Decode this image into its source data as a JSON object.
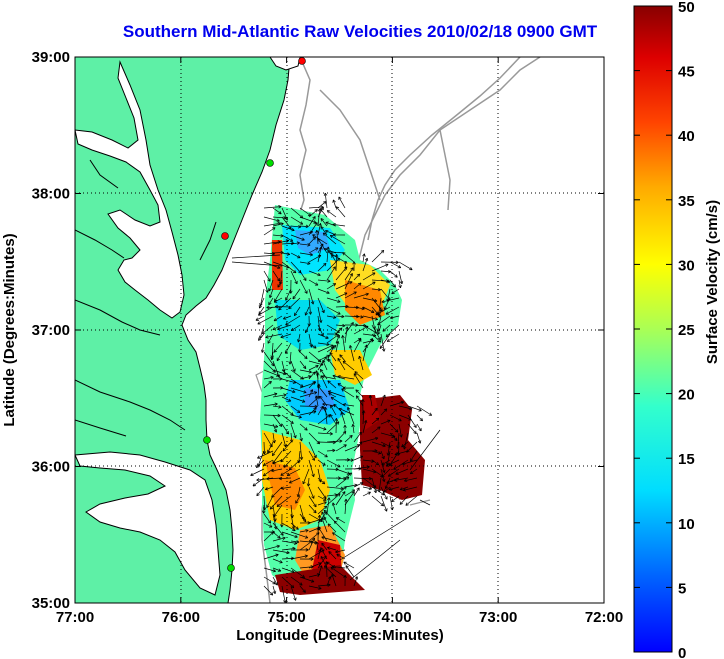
{
  "title": "Southern Mid-Atlantic Raw Velocities 2010/02/18 0900 GMT",
  "x_axis": {
    "label": "Longitude (Degrees:Minutes)",
    "ticks": [
      "77:00",
      "76:00",
      "75:00",
      "74:00",
      "73:00",
      "72:00"
    ]
  },
  "y_axis": {
    "label": "Latitude (Degrees:Minutes)",
    "ticks": [
      "39:00",
      "38:00",
      "37:00",
      "36:00",
      "35:00"
    ]
  },
  "colorbar": {
    "label": "Surface Velocity (cm/s)",
    "ticks": [
      "50",
      "45",
      "40",
      "35",
      "30",
      "25",
      "20",
      "15",
      "10",
      "5",
      "0"
    ],
    "min": 0,
    "max": 50,
    "colormap": "jet"
  },
  "map": {
    "lon_range": [
      -77,
      -72
    ],
    "lat_range": [
      35,
      39
    ],
    "grid": "dotted",
    "land_color": "#5ef0a6",
    "bathymetry_color": "#999999",
    "station_markers": [
      {
        "color": "red",
        "lon": -74.92,
        "lat": 38.98
      },
      {
        "color": "green",
        "lon": -75.09,
        "lat": 38.22
      },
      {
        "color": "red",
        "lon": -75.48,
        "lat": 37.7
      },
      {
        "color": "green",
        "lon": -75.65,
        "lat": 36.17
      },
      {
        "color": "green",
        "lon": -75.47,
        "lat": 35.25
      }
    ]
  },
  "colors": {
    "title": "#0000ee",
    "land": "#5ef0a6",
    "vectors": "#000000"
  }
}
